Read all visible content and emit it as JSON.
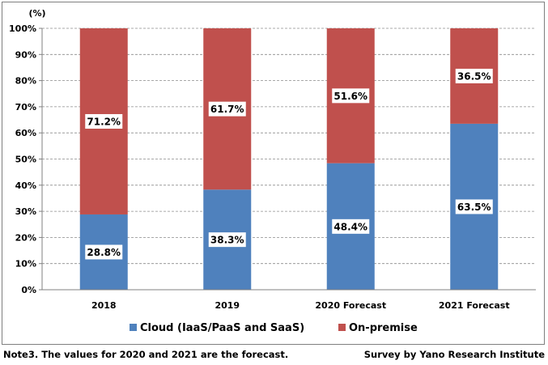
{
  "chart_data": {
    "type": "bar",
    "stacked": true,
    "y_unit_label": "(%)",
    "categories": [
      "2018",
      "2019",
      "2020 Forecast",
      "2021 Forecast"
    ],
    "series": [
      {
        "name": "Cloud (IaaS/PaaS and SaaS)",
        "color": "#4f81bd",
        "values": [
          28.8,
          38.3,
          48.4,
          63.5
        ],
        "labels": [
          "28.8%",
          "38.3%",
          "48.4%",
          "63.5%"
        ]
      },
      {
        "name": "On-premise",
        "color": "#c0504d",
        "values": [
          71.2,
          61.7,
          51.6,
          36.5
        ],
        "labels": [
          "71.2%",
          "61.7%",
          "51.6%",
          "36.5%"
        ]
      }
    ],
    "ylim": [
      0,
      100
    ],
    "yticks": [
      0,
      10,
      20,
      30,
      40,
      50,
      60,
      70,
      80,
      90,
      100
    ],
    "ytick_labels": [
      "0%",
      "10%",
      "20%",
      "30%",
      "40%",
      "50%",
      "60%",
      "70%",
      "80%",
      "90%",
      "100%"
    ],
    "grid": "horizontal-dashed",
    "legend_position": "bottom"
  },
  "notes": {
    "left": "Note3. The values for 2020 and 2021 are the forecast.",
    "right": "Survey by Yano Research Institute"
  }
}
